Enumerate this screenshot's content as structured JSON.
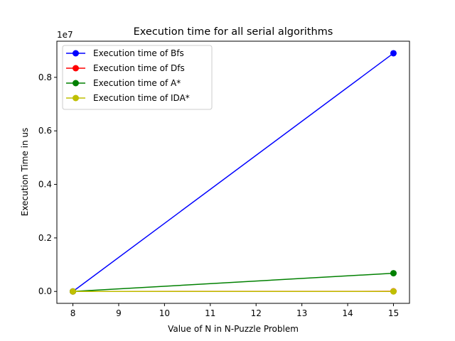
{
  "chart_data": {
    "type": "line",
    "title": "Execution time for all serial algorithms",
    "xlabel": "Value of N in N-Puzzle Problem",
    "ylabel": "Execution Time in us",
    "y_offset_label": "1e7",
    "y_scale_factor": 10000000,
    "x": [
      8,
      15
    ],
    "xlim": [
      7.65,
      15.35
    ],
    "ylim": [
      -445000,
      9350000
    ],
    "x_ticks": [
      8,
      9,
      10,
      11,
      12,
      13,
      14,
      15
    ],
    "y_ticks": [
      0,
      2000000,
      4000000,
      6000000,
      8000000
    ],
    "y_tick_labels": [
      "0.0",
      "0.2",
      "0.4",
      "0.6",
      "0.8"
    ],
    "legend_position": "upper left",
    "grid": false,
    "series": [
      {
        "name": "Execution time of Bfs",
        "color": "#0000ff",
        "values": [
          0,
          8900000
        ]
      },
      {
        "name": "Execution time of Dfs",
        "color": "#ff0000",
        "values": [
          0,
          5000
        ]
      },
      {
        "name": "Execution time of A*",
        "color": "#008000",
        "values": [
          0,
          680000
        ]
      },
      {
        "name": "Execution time of IDA*",
        "color": "#bfbf00",
        "values": [
          0,
          1000
        ]
      }
    ]
  }
}
